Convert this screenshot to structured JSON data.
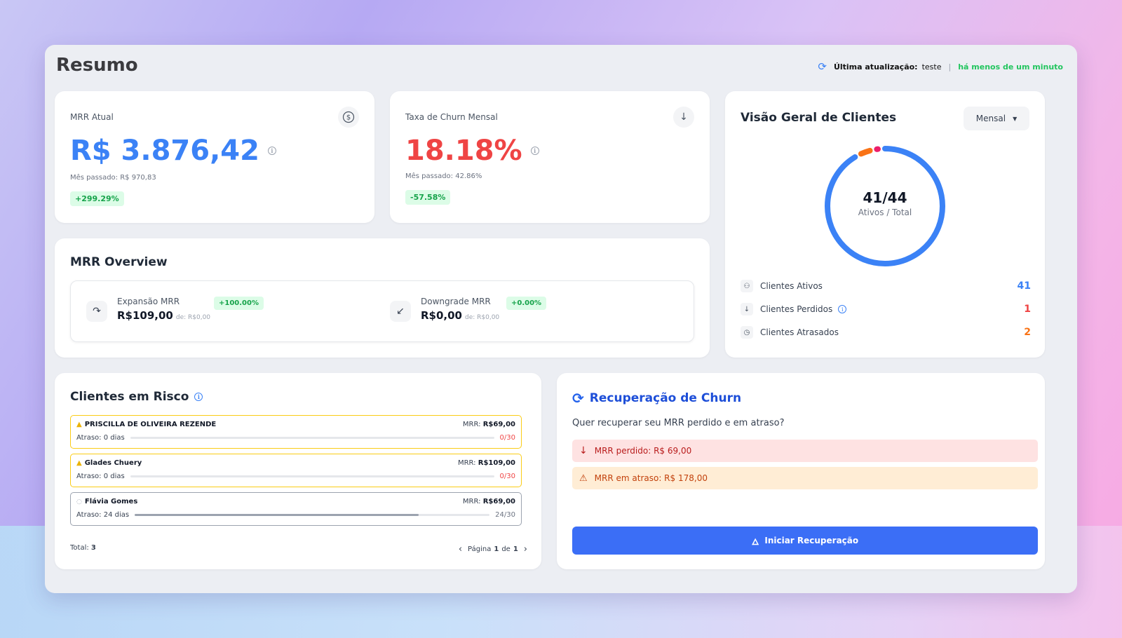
{
  "page": {
    "title": "Resumo",
    "update": {
      "label": "Última atualização:",
      "user": "teste",
      "separator": "|",
      "when": "há menos de um minuto"
    }
  },
  "mrr_card": {
    "label": "MRR Atual",
    "value": "R$ 3.876,42",
    "previous": "Mês passado: R$ 970,83",
    "change": "+299.29%",
    "icon": "dollar-icon"
  },
  "churn_card": {
    "label": "Taxa de Churn Mensal",
    "value": "18.18%",
    "previous": "Mês passado: 42.86%",
    "change": "-57.58%",
    "icon": "arrow-down-icon"
  },
  "mrr_overview": {
    "title": "MRR Overview",
    "expansion": {
      "label": "Expansão MRR",
      "value": "R$109,00",
      "from": "de: R$0,00",
      "change": "+100.00%"
    },
    "downgrade": {
      "label": "Downgrade MRR",
      "value": "R$0,00",
      "from": "de: R$0,00",
      "change": "+0.00%"
    }
  },
  "clients_overview": {
    "title": "Visão Geral de Clientes",
    "period": "Mensal",
    "ratio": "41/44",
    "ratio_label": "Ativos / Total",
    "donut": {
      "active": 41,
      "lost": 1,
      "late": 2,
      "total": 44
    },
    "rows": [
      {
        "label": "Clientes Ativos",
        "value": "41",
        "icon": "users-icon",
        "color": "#3b82f6"
      },
      {
        "label": "Clientes Perdidos",
        "value": "1",
        "icon": "arrow-down-icon",
        "color": "#ef4444"
      },
      {
        "label": "Clientes Atrasados",
        "value": "2",
        "icon": "clock-icon",
        "color": "#f97316"
      }
    ]
  },
  "risk_clients": {
    "title": "Clientes em Risco",
    "items": [
      {
        "name": "PRISCILLA DE OLIVEIRA REZENDE",
        "mrr_label": "MRR:",
        "mrr": "R$69,00",
        "delay": "Atraso: 0 dias",
        "count": "0/30",
        "progress": 0,
        "status": "warning"
      },
      {
        "name": "Glades Chuery",
        "mrr_label": "MRR:",
        "mrr": "R$109,00",
        "delay": "Atraso: 0 dias",
        "count": "0/30",
        "progress": 0,
        "status": "warning"
      },
      {
        "name": "Flávia Gomes",
        "mrr_label": "MRR:",
        "mrr": "R$69,00",
        "delay": "Atraso: 24 dias",
        "count": "24/30",
        "progress": 0.8,
        "status": "neutral"
      }
    ],
    "total_label": "Total:",
    "total": "3",
    "pagination": {
      "page_label": "Página",
      "page": "1",
      "of_label": "de",
      "pages": "1"
    }
  },
  "churn_recovery": {
    "title": "Recuperação de Churn",
    "question": "Quer recuperar seu MRR perdido e em atraso?",
    "lost": "MRR perdido: R$ 69,00",
    "late": "MRR em atraso: R$ 178,00",
    "button": "Iniciar Recuperação"
  },
  "colors": {
    "blue": "#3b82f6",
    "red": "#ef4444",
    "orange": "#f97316",
    "pink": "#ec1f6a",
    "green": "#22c55e"
  }
}
